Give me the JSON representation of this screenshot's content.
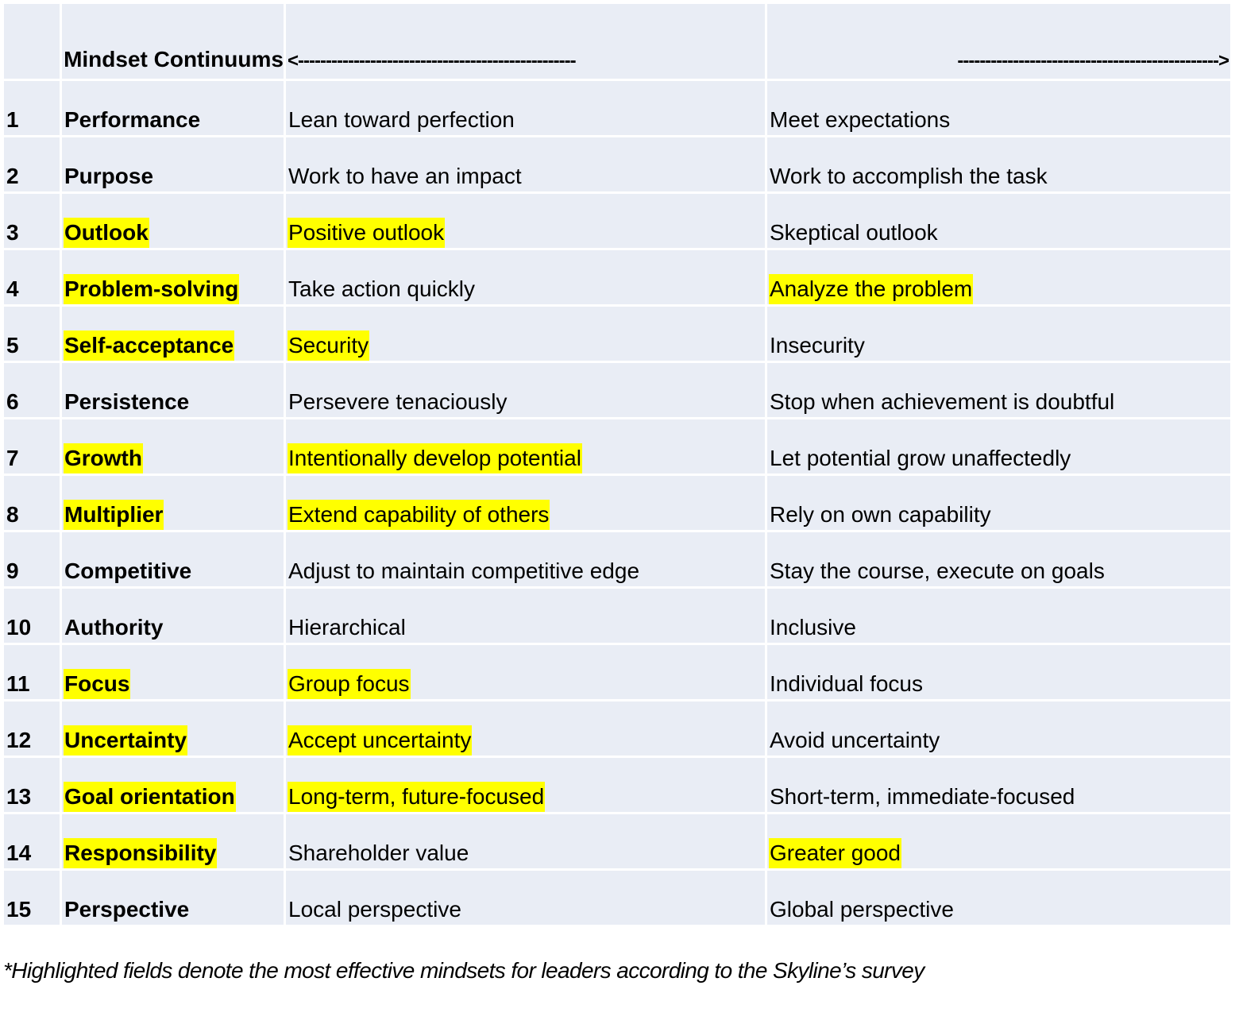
{
  "header": {
    "title": "Mindset Continuums",
    "arrow_left": "<--------------------------------------------------",
    "arrow_right": "----------------------------------------------->"
  },
  "highlight_color": "#ffff00",
  "rows": [
    {
      "num": "1",
      "name": "Performance",
      "left": "Lean toward perfection",
      "right": "Meet expectations",
      "hl_name": false,
      "hl_left": false,
      "hl_right": false
    },
    {
      "num": "2",
      "name": "Purpose",
      "left": "Work to have an impact",
      "right": "Work to accomplish the task",
      "hl_name": false,
      "hl_left": false,
      "hl_right": false
    },
    {
      "num": "3",
      "name": "Outlook",
      "left": "Positive outlook",
      "right": "Skeptical outlook",
      "hl_name": true,
      "hl_left": true,
      "hl_right": false
    },
    {
      "num": "4",
      "name": "Problem-solving",
      "left": "Take action quickly",
      "right": "Analyze the problem",
      "hl_name": true,
      "hl_left": false,
      "hl_right": true
    },
    {
      "num": "5",
      "name": "Self-acceptance",
      "left": "Security",
      "right": "Insecurity",
      "hl_name": true,
      "hl_left": true,
      "hl_right": false
    },
    {
      "num": "6",
      "name": "Persistence",
      "left": "Persevere tenaciously",
      "right": "Stop when achievement is doubtful",
      "hl_name": false,
      "hl_left": false,
      "hl_right": false
    },
    {
      "num": "7",
      "name": "Growth",
      "left": "Intentionally develop potential",
      "right": "Let potential grow unaffectedly",
      "hl_name": true,
      "hl_left": true,
      "hl_right": false
    },
    {
      "num": "8",
      "name": "Multiplier",
      "left": "Extend capability of others",
      "right": "Rely on own capability",
      "hl_name": true,
      "hl_left": true,
      "hl_right": false
    },
    {
      "num": "9",
      "name": "Competitive",
      "left": "Adjust to maintain competitive edge",
      "right": "Stay the course, execute on goals",
      "hl_name": false,
      "hl_left": false,
      "hl_right": false
    },
    {
      "num": "10",
      "name": "Authority",
      "left": "Hierarchical",
      "right": "Inclusive",
      "hl_name": false,
      "hl_left": false,
      "hl_right": false
    },
    {
      "num": "11",
      "name": "Focus",
      "left": "Group focus",
      "right": "Individual focus",
      "hl_name": true,
      "hl_left": true,
      "hl_right": false
    },
    {
      "num": "12",
      "name": "Uncertainty",
      "left": "Accept uncertainty",
      "right": "Avoid uncertainty",
      "hl_name": true,
      "hl_left": true,
      "hl_right": false
    },
    {
      "num": "13",
      "name": "Goal orientation",
      "left": "Long-term, future-focused",
      "right": "Short-term, immediate-focused",
      "hl_name": true,
      "hl_left": true,
      "hl_right": false
    },
    {
      "num": "14",
      "name": "Responsibility",
      "left": "Shareholder value",
      "right": "Greater good",
      "hl_name": true,
      "hl_left": false,
      "hl_right": true
    },
    {
      "num": "15",
      "name": "Perspective",
      "left": "Local perspective",
      "right": "Global perspective",
      "hl_name": false,
      "hl_left": false,
      "hl_right": false
    }
  ],
  "footnote": "*Highlighted fields denote the most effective mindsets for leaders according to the Skyline’s survey"
}
